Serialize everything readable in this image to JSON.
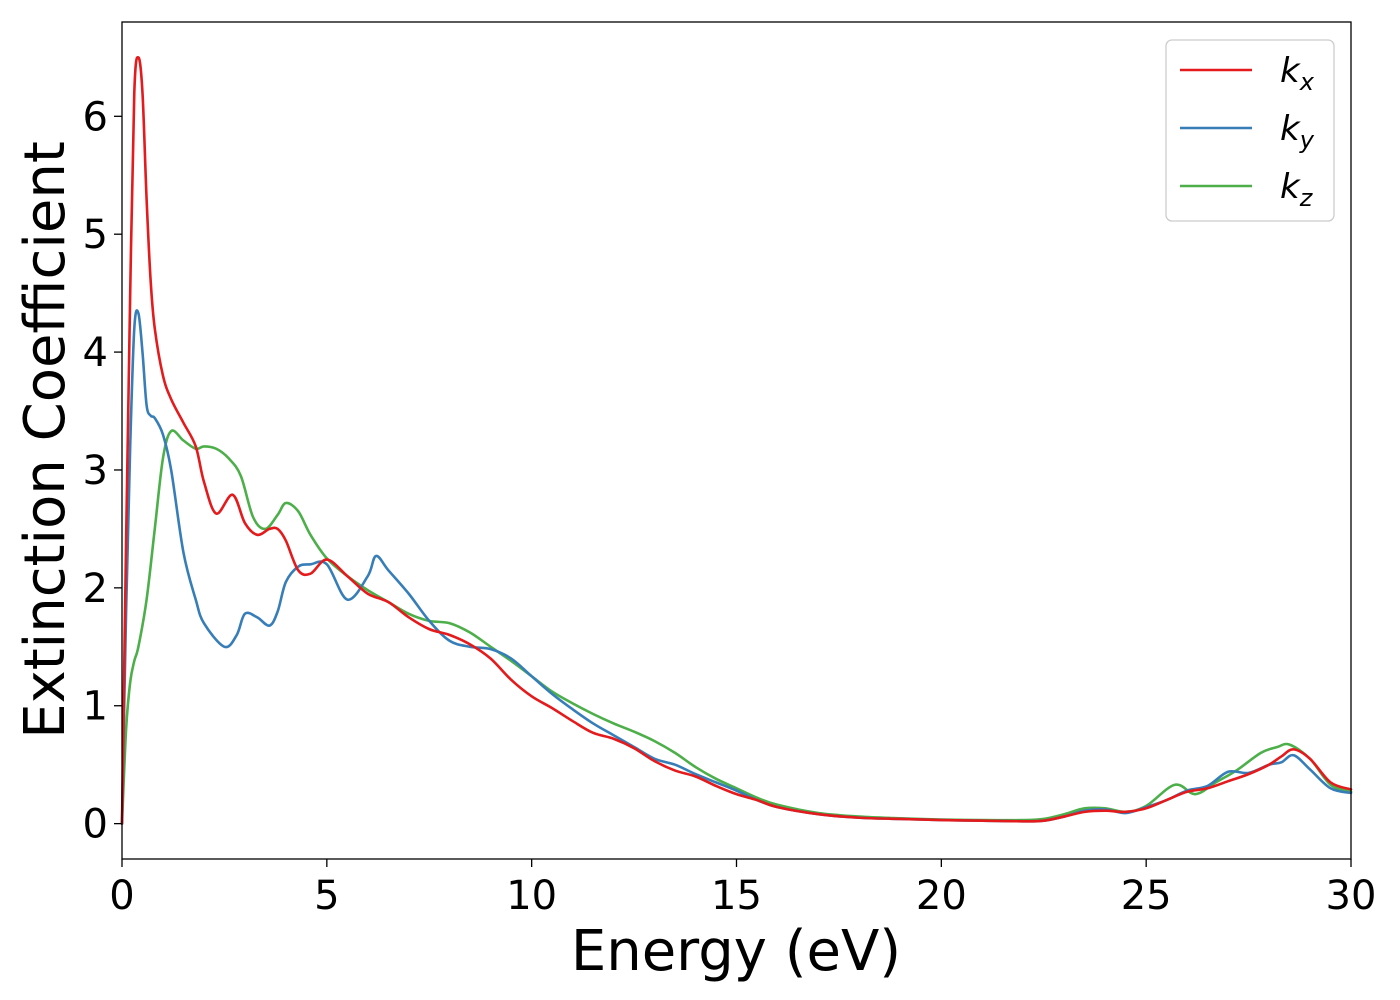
{
  "chart_data": {
    "type": "line",
    "title": "",
    "xlabel": "Energy (eV)",
    "ylabel": "Extinction Coefficient",
    "xlim": [
      0,
      30
    ],
    "ylim": [
      -0.3,
      6.8
    ],
    "xticks": [
      0,
      5,
      10,
      15,
      20,
      25,
      30
    ],
    "yticks": [
      0,
      1,
      2,
      3,
      4,
      5,
      6
    ],
    "grid": false,
    "legend_position": "top-right",
    "series": [
      {
        "name": "k_x",
        "base": "k",
        "sub": "x",
        "color": "#e41a1c",
        "x": [
          0,
          0.1,
          0.2,
          0.3,
          0.4,
          0.5,
          0.6,
          0.7,
          0.8,
          1.0,
          1.2,
          1.5,
          1.8,
          2.0,
          2.3,
          2.7,
          3.0,
          3.3,
          3.6,
          3.8,
          4.0,
          4.3,
          4.6,
          5.0,
          5.5,
          6.0,
          6.5,
          7.0,
          7.5,
          8.0,
          8.5,
          9.0,
          9.5,
          10.0,
          10.5,
          11.0,
          11.5,
          12.0,
          12.5,
          13.0,
          13.5,
          14.0,
          14.5,
          15.0,
          15.5,
          16.0,
          17.0,
          18.0,
          19.0,
          20.0,
          21.0,
          22.0,
          22.5,
          23.0,
          23.5,
          24.0,
          24.5,
          25.0,
          25.5,
          26.0,
          26.5,
          27.0,
          27.5,
          28.0,
          28.3,
          28.6,
          29.0,
          29.5,
          30.0
        ],
        "y": [
          0,
          2.4,
          4.5,
          6.2,
          6.5,
          6.2,
          5.3,
          4.6,
          4.2,
          3.8,
          3.6,
          3.4,
          3.2,
          2.9,
          2.63,
          2.79,
          2.55,
          2.45,
          2.5,
          2.5,
          2.4,
          2.15,
          2.12,
          2.24,
          2.1,
          1.95,
          1.88,
          1.75,
          1.65,
          1.6,
          1.52,
          1.4,
          1.22,
          1.08,
          0.98,
          0.87,
          0.77,
          0.72,
          0.64,
          0.53,
          0.45,
          0.4,
          0.32,
          0.25,
          0.2,
          0.14,
          0.08,
          0.05,
          0.04,
          0.03,
          0.025,
          0.02,
          0.025,
          0.06,
          0.1,
          0.11,
          0.1,
          0.13,
          0.2,
          0.27,
          0.3,
          0.36,
          0.42,
          0.5,
          0.57,
          0.63,
          0.55,
          0.35,
          0.29
        ]
      },
      {
        "name": "k_y",
        "base": "k",
        "sub": "y",
        "color": "#377eb8",
        "x": [
          0,
          0.1,
          0.2,
          0.3,
          0.4,
          0.5,
          0.6,
          0.7,
          0.8,
          1.0,
          1.2,
          1.5,
          1.8,
          2.0,
          2.5,
          2.8,
          3.0,
          3.3,
          3.6,
          3.8,
          4.0,
          4.3,
          4.6,
          5.0,
          5.5,
          6.0,
          6.2,
          6.5,
          7.0,
          7.5,
          8.0,
          8.5,
          9.0,
          9.5,
          10.0,
          10.5,
          11.0,
          11.5,
          12.0,
          12.5,
          13.0,
          13.5,
          14.0,
          14.5,
          15.0,
          15.5,
          16.0,
          17.0,
          18.0,
          19.0,
          20.0,
          21.0,
          22.0,
          22.5,
          23.0,
          23.5,
          24.0,
          24.5,
          25.0,
          25.5,
          26.0,
          26.5,
          27.0,
          27.5,
          28.0,
          28.3,
          28.6,
          29.0,
          29.5,
          30.0
        ],
        "y": [
          0,
          1.8,
          3.2,
          4.2,
          4.33,
          4.0,
          3.55,
          3.46,
          3.44,
          3.3,
          3.0,
          2.3,
          1.9,
          1.7,
          1.5,
          1.6,
          1.78,
          1.75,
          1.68,
          1.8,
          2.05,
          2.18,
          2.2,
          2.2,
          1.9,
          2.1,
          2.27,
          2.15,
          1.95,
          1.72,
          1.55,
          1.5,
          1.48,
          1.4,
          1.25,
          1.1,
          0.97,
          0.85,
          0.75,
          0.65,
          0.55,
          0.5,
          0.42,
          0.35,
          0.28,
          0.2,
          0.14,
          0.08,
          0.05,
          0.04,
          0.03,
          0.025,
          0.02,
          0.025,
          0.06,
          0.11,
          0.12,
          0.09,
          0.14,
          0.2,
          0.28,
          0.32,
          0.44,
          0.43,
          0.5,
          0.52,
          0.58,
          0.46,
          0.3,
          0.26
        ]
      },
      {
        "name": "k_z",
        "base": "k",
        "sub": "z",
        "color": "#4daf4a",
        "x": [
          0,
          0.1,
          0.2,
          0.3,
          0.4,
          0.6,
          0.8,
          1.0,
          1.2,
          1.5,
          1.8,
          2.0,
          2.3,
          2.6,
          2.9,
          3.2,
          3.5,
          3.8,
          4.0,
          4.3,
          4.6,
          5.0,
          5.5,
          6.0,
          6.5,
          7.0,
          7.5,
          8.0,
          8.5,
          9.0,
          9.5,
          10.0,
          10.5,
          11.0,
          11.5,
          12.0,
          12.5,
          13.0,
          13.5,
          14.0,
          14.5,
          15.0,
          15.5,
          16.0,
          17.0,
          18.0,
          19.0,
          20.0,
          21.0,
          22.0,
          22.5,
          23.0,
          23.5,
          24.0,
          24.5,
          25.0,
          25.7,
          26.2,
          26.7,
          27.2,
          27.8,
          28.2,
          28.5,
          29.0,
          29.5,
          30.0
        ],
        "y": [
          0,
          0.8,
          1.2,
          1.38,
          1.5,
          1.9,
          2.5,
          3.1,
          3.33,
          3.25,
          3.18,
          3.2,
          3.18,
          3.1,
          2.95,
          2.6,
          2.5,
          2.62,
          2.72,
          2.65,
          2.45,
          2.25,
          2.1,
          1.98,
          1.88,
          1.78,
          1.72,
          1.7,
          1.62,
          1.5,
          1.38,
          1.25,
          1.12,
          1.02,
          0.93,
          0.85,
          0.78,
          0.7,
          0.6,
          0.48,
          0.38,
          0.3,
          0.22,
          0.16,
          0.09,
          0.06,
          0.045,
          0.035,
          0.03,
          0.03,
          0.04,
          0.08,
          0.13,
          0.13,
          0.1,
          0.15,
          0.33,
          0.25,
          0.35,
          0.45,
          0.6,
          0.65,
          0.67,
          0.55,
          0.33,
          0.27
        ]
      }
    ]
  }
}
